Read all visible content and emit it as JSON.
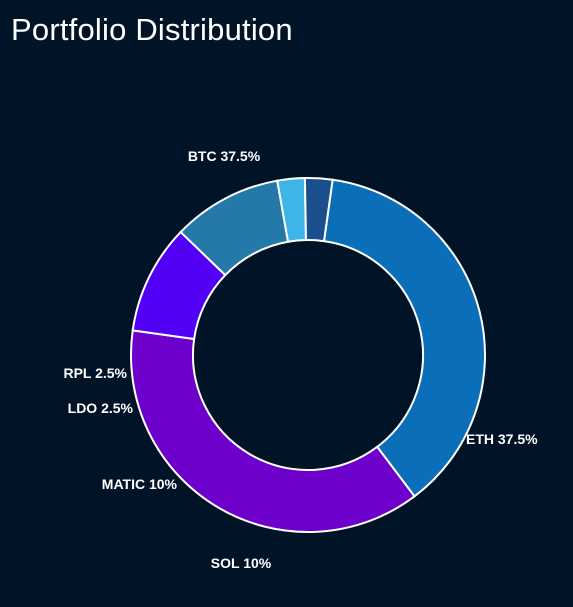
{
  "title": "Portfolio Distribution",
  "colors": {
    "background": "#011427",
    "stroke": "#ffffff"
  },
  "chart_data": {
    "type": "pie",
    "variant": "donut",
    "title": "Portfolio Distribution",
    "legend": "none",
    "slices": [
      {
        "name": "BTC",
        "value": 37.5,
        "label": "BTC 37.5%",
        "color": "#0A6EB8"
      },
      {
        "name": "ETH",
        "value": 37.5,
        "label": "ETH 37.5%",
        "color": "#6E00CC"
      },
      {
        "name": "SOL",
        "value": 10,
        "label": "SOL 10%",
        "color": "#5200F5"
      },
      {
        "name": "MATIC",
        "value": 10,
        "label": "MATIC 10%",
        "color": "#2479A8"
      },
      {
        "name": "LDO",
        "value": 2.5,
        "label": "LDO 2.5%",
        "color": "#3FB4E6"
      },
      {
        "name": "RPL",
        "value": 2.5,
        "label": "RPL 2.5%",
        "color": "#1B4E8C"
      }
    ]
  }
}
